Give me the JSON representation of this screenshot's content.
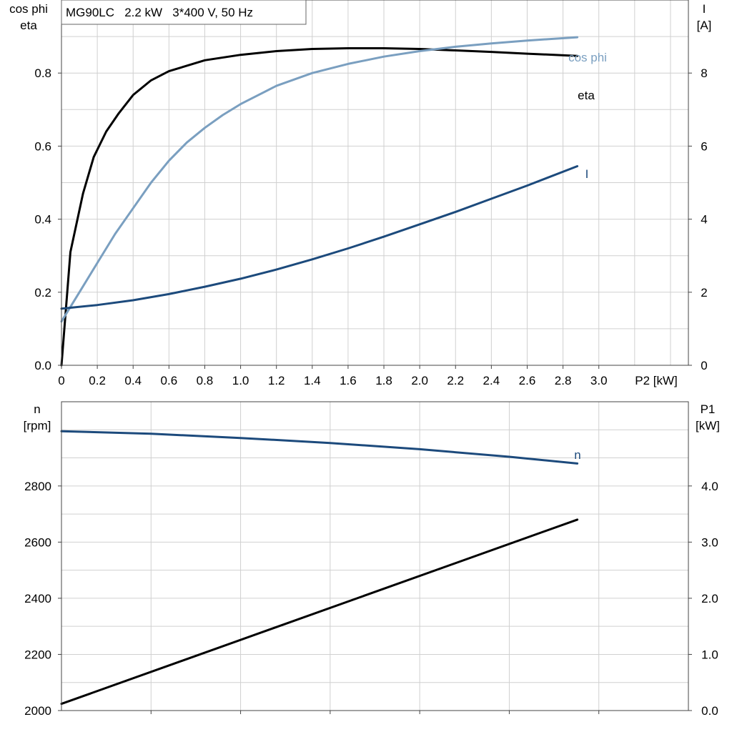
{
  "chart_data": [
    {
      "type": "line",
      "title": "MG90LC   2.2 kW   3*400 V, 50 Hz",
      "xlabel": "P2 [kW]",
      "xlim": [
        0,
        3.5
      ],
      "x_ticks": [
        "0",
        "0.2",
        "0.4",
        "0.6",
        "0.8",
        "1.0",
        "1.2",
        "1.4",
        "1.6",
        "1.8",
        "2.0",
        "2.2",
        "2.4",
        "2.6",
        "2.8",
        "3.0"
      ],
      "y_left": {
        "label_line1": "cos phi",
        "label_line2": "eta",
        "range": [
          0,
          1.0
        ],
        "ticks": [
          "0.0",
          "0.2",
          "0.4",
          "0.6",
          "0.8"
        ]
      },
      "y_right": {
        "label_line1": "I",
        "label_line2": "[A]",
        "range": [
          0,
          10
        ],
        "ticks": [
          "0",
          "2",
          "4",
          "6",
          "8"
        ]
      },
      "grid": true,
      "series": [
        {
          "name": "eta",
          "axis": "left",
          "color": "#000000",
          "points": [
            [
              0.0,
              0.0
            ],
            [
              0.05,
              0.31
            ],
            [
              0.12,
              0.47
            ],
            [
              0.18,
              0.57
            ],
            [
              0.25,
              0.64
            ],
            [
              0.32,
              0.69
            ],
            [
              0.4,
              0.74
            ],
            [
              0.5,
              0.78
            ],
            [
              0.6,
              0.805
            ],
            [
              0.8,
              0.835
            ],
            [
              1.0,
              0.85
            ],
            [
              1.2,
              0.86
            ],
            [
              1.4,
              0.866
            ],
            [
              1.6,
              0.868
            ],
            [
              1.8,
              0.868
            ],
            [
              2.0,
              0.866
            ],
            [
              2.2,
              0.862
            ],
            [
              2.4,
              0.858
            ],
            [
              2.6,
              0.853
            ],
            [
              2.88,
              0.847
            ]
          ]
        },
        {
          "name": "cos phi",
          "axis": "left",
          "color": "#7a9fc0",
          "points": [
            [
              0.0,
              0.12
            ],
            [
              0.1,
              0.2
            ],
            [
              0.2,
              0.28
            ],
            [
              0.3,
              0.36
            ],
            [
              0.4,
              0.43
            ],
            [
              0.5,
              0.5
            ],
            [
              0.6,
              0.56
            ],
            [
              0.7,
              0.61
            ],
            [
              0.8,
              0.65
            ],
            [
              0.9,
              0.685
            ],
            [
              1.0,
              0.715
            ],
            [
              1.2,
              0.765
            ],
            [
              1.4,
              0.8
            ],
            [
              1.6,
              0.825
            ],
            [
              1.8,
              0.845
            ],
            [
              2.0,
              0.86
            ],
            [
              2.2,
              0.872
            ],
            [
              2.4,
              0.881
            ],
            [
              2.6,
              0.889
            ],
            [
              2.88,
              0.898
            ]
          ]
        },
        {
          "name": "I",
          "axis": "right",
          "color": "#1c4a7c",
          "points": [
            [
              0.0,
              1.55
            ],
            [
              0.2,
              1.65
            ],
            [
              0.4,
              1.78
            ],
            [
              0.6,
              1.95
            ],
            [
              0.8,
              2.15
            ],
            [
              1.0,
              2.37
            ],
            [
              1.2,
              2.62
            ],
            [
              1.4,
              2.9
            ],
            [
              1.6,
              3.2
            ],
            [
              1.8,
              3.52
            ],
            [
              2.0,
              3.86
            ],
            [
              2.2,
              4.2
            ],
            [
              2.4,
              4.56
            ],
            [
              2.6,
              4.92
            ],
            [
              2.88,
              5.45
            ]
          ]
        }
      ]
    },
    {
      "type": "line",
      "xlim": [
        0,
        3.5
      ],
      "y_left": {
        "label_line1": "n",
        "label_line2": "[rpm]",
        "range": [
          2000,
          3100
        ],
        "ticks": [
          "2000",
          "2200",
          "2400",
          "2600",
          "2800"
        ]
      },
      "y_right": {
        "label_line1": "P1",
        "label_line2": "[kW]",
        "range": [
          0,
          5.5
        ],
        "ticks": [
          "0.0",
          "1.0",
          "2.0",
          "3.0",
          "4.0"
        ]
      },
      "grid": true,
      "series": [
        {
          "name": "n",
          "axis": "left",
          "color": "#1c4a7c",
          "points": [
            [
              0.0,
              2995
            ],
            [
              0.5,
              2986
            ],
            [
              1.0,
              2971
            ],
            [
              1.5,
              2953
            ],
            [
              2.0,
              2931
            ],
            [
              2.5,
              2904
            ],
            [
              2.88,
              2880
            ]
          ]
        },
        {
          "axis": "right",
          "color": "#000000",
          "points": [
            [
              0.0,
              0.12
            ],
            [
              2.88,
              3.4
            ]
          ]
        }
      ]
    }
  ]
}
